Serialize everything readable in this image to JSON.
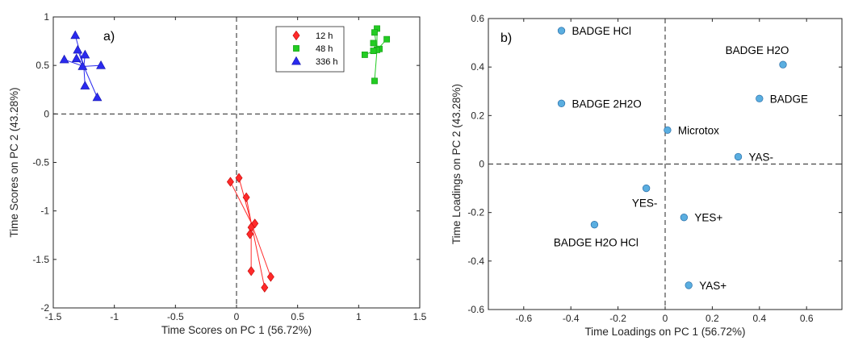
{
  "chart_data": [
    {
      "type": "scatter",
      "panel_label": "a)",
      "xlabel": "Time Scores on PC 1 (56.72%)",
      "ylabel": "Time Scores on PC 2 (43.28%)",
      "xlim": [
        -1.5,
        1.5
      ],
      "ylim": [
        -2,
        1
      ],
      "xticks": [
        -1.5,
        -1,
        -0.5,
        0,
        0.5,
        1,
        1.5
      ],
      "yticks": [
        -2,
        -1.5,
        -1,
        -0.5,
        0,
        0.5,
        1
      ],
      "xtick_labels": [
        "-1.5",
        "-1",
        "-0.5",
        "0",
        "0.5",
        "1",
        "1.5"
      ],
      "ytick_labels": [
        "-2",
        "-1.5",
        "-1",
        "-0.5",
        "0",
        "0.5",
        "1"
      ],
      "grid": false,
      "reference_lines": "dashed lines at x=0 and y=0",
      "legend_position": "top-right",
      "series": [
        {
          "name": "12 h",
          "marker": "diamond",
          "color": "#ff2a2a",
          "centroid": [
            0.12,
            -1.12
          ],
          "points": [
            [
              -0.05,
              -0.7
            ],
            [
              0.02,
              -0.66
            ],
            [
              0.08,
              -0.86
            ],
            [
              0.15,
              -1.13
            ],
            [
              0.12,
              -1.17
            ],
            [
              0.11,
              -1.24
            ],
            [
              0.12,
              -1.62
            ],
            [
              0.28,
              -1.68
            ],
            [
              0.23,
              -1.79
            ]
          ]
        },
        {
          "name": "48 h",
          "marker": "square",
          "color": "#22cc22",
          "centroid": [
            1.15,
            0.66
          ],
          "points": [
            [
              1.15,
              0.88
            ],
            [
              1.13,
              0.84
            ],
            [
              1.23,
              0.77
            ],
            [
              1.12,
              0.73
            ],
            [
              1.17,
              0.67
            ],
            [
              1.15,
              0.66
            ],
            [
              1.12,
              0.65
            ],
            [
              1.05,
              0.61
            ],
            [
              1.13,
              0.34
            ]
          ]
        },
        {
          "name": "336 h",
          "marker": "triangle",
          "color": "#2a2aee",
          "centroid": [
            -1.25,
            0.49
          ],
          "points": [
            [
              -1.32,
              0.81
            ],
            [
              -1.3,
              0.66
            ],
            [
              -1.24,
              0.61
            ],
            [
              -1.31,
              0.57
            ],
            [
              -1.41,
              0.56
            ],
            [
              -1.11,
              0.5
            ],
            [
              -1.26,
              0.49
            ],
            [
              -1.24,
              0.29
            ],
            [
              -1.14,
              0.17
            ]
          ]
        }
      ]
    },
    {
      "type": "scatter",
      "panel_label": "b)",
      "xlabel": "Time Loadings on PC 1 (56.72%)",
      "ylabel": "Time Loadings on PC 2 (43.28%)",
      "xlim": [
        -0.75,
        0.75
      ],
      "ylim": [
        -0.6,
        0.6
      ],
      "xticks": [
        -0.6,
        -0.4,
        -0.2,
        0,
        0.2,
        0.4,
        0.6
      ],
      "yticks": [
        -0.6,
        -0.4,
        -0.2,
        0,
        0.2,
        0.4,
        0.6
      ],
      "xtick_labels": [
        "-0.6",
        "-0.4",
        "-0.2",
        "0",
        "0.2",
        "0.4",
        "0.6"
      ],
      "ytick_labels": [
        "-0.6",
        "-0.4",
        "-0.2",
        "0",
        "0.2",
        "0.4",
        "0.6"
      ],
      "grid": false,
      "reference_lines": "dashed lines at x=0 and y=0",
      "marker_color": "#5aaee0",
      "points": [
        {
          "label": "BADGE HCl",
          "x": -0.44,
          "y": 0.55,
          "label_side": "right"
        },
        {
          "label": "BADGE H2O",
          "x": 0.5,
          "y": 0.41,
          "label_side": "above"
        },
        {
          "label": "BADGE",
          "x": 0.4,
          "y": 0.27,
          "label_side": "right"
        },
        {
          "label": "BADGE 2H2O",
          "x": -0.44,
          "y": 0.25,
          "label_side": "right"
        },
        {
          "label": "Microtox",
          "x": 0.01,
          "y": 0.14,
          "label_side": "right"
        },
        {
          "label": "YAS-",
          "x": 0.31,
          "y": 0.03,
          "label_side": "right"
        },
        {
          "label": "YES-",
          "x": -0.08,
          "y": -0.1,
          "label_side": "below"
        },
        {
          "label": "YES+",
          "x": 0.08,
          "y": -0.22,
          "label_side": "right"
        },
        {
          "label": "BADGE H2O HCl",
          "x": -0.3,
          "y": -0.25,
          "label_side": "below"
        },
        {
          "label": "YAS+",
          "x": 0.1,
          "y": -0.5,
          "label_side": "right"
        }
      ]
    }
  ]
}
